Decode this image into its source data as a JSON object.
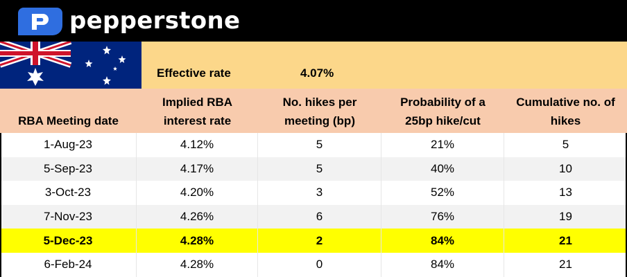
{
  "brand": {
    "name": "pepperstone",
    "bg_color": "#000000",
    "logo_color": "#2f6ee0"
  },
  "flag": {
    "icon": "australia-flag-icon"
  },
  "effective": {
    "label": "Effective rate",
    "value": "4.07%",
    "bg_color": "#fcd78a"
  },
  "table": {
    "header_bg": "#f8cbad",
    "highlight_color": "#ffff00",
    "columns": [
      {
        "line1": "RBA Meeting date",
        "line2": ""
      },
      {
        "line1": "Implied RBA",
        "line2": "interest rate"
      },
      {
        "line1": "No. hikes per",
        "line2": "meeting (bp)"
      },
      {
        "line1": "Probability of a",
        "line2": "25bp hike/cut"
      },
      {
        "line1": "Cumulative no. of",
        "line2": "hikes"
      }
    ],
    "rows": [
      {
        "date": "1-Aug-23",
        "rate": "4.12%",
        "hikes": "5",
        "prob": "21%",
        "cumulative": "5"
      },
      {
        "date": "5-Sep-23",
        "rate": "4.17%",
        "hikes": "5",
        "prob": "40%",
        "cumulative": "10"
      },
      {
        "date": "3-Oct-23",
        "rate": "4.20%",
        "hikes": "3",
        "prob": "52%",
        "cumulative": "13"
      },
      {
        "date": "7-Nov-23",
        "rate": "4.26%",
        "hikes": "6",
        "prob": "76%",
        "cumulative": "19"
      },
      {
        "date": "5-Dec-23",
        "rate": "4.28%",
        "hikes": "2",
        "prob": "84%",
        "cumulative": "21"
      },
      {
        "date": "6-Feb-24",
        "rate": "4.28%",
        "hikes": "0",
        "prob": "84%",
        "cumulative": "21"
      }
    ]
  }
}
